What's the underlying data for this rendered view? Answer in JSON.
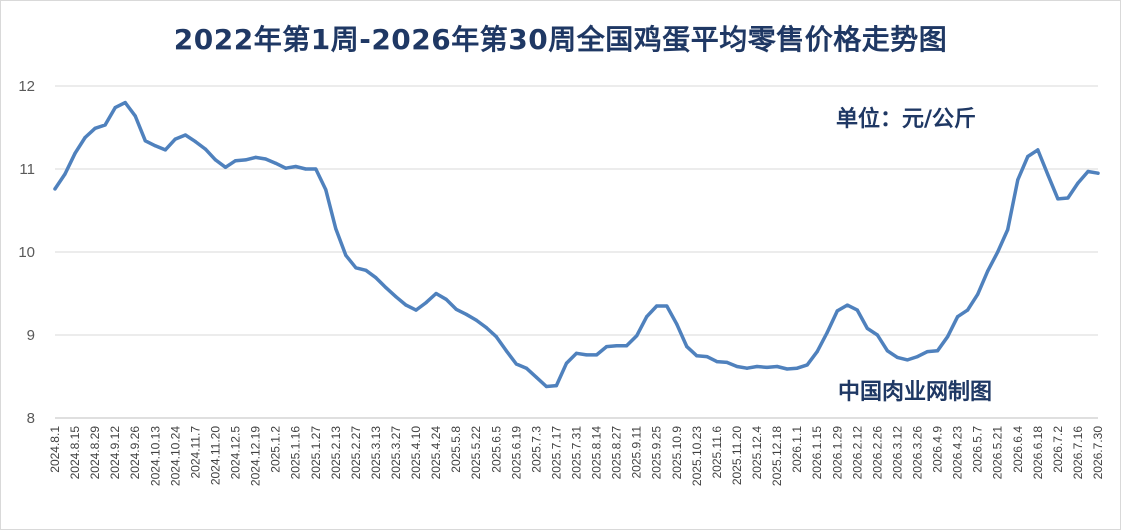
{
  "chart_data": {
    "type": "line",
    "title": "2022年第1周-2026年第30周全国鸡蛋平均零售价格走势图",
    "unit_label": "单位：元/公斤",
    "source_label": "中国肉业网制图",
    "ylim": [
      8,
      12
    ],
    "yticks": [
      8,
      9,
      10,
      11,
      12
    ],
    "grid": true,
    "legend": "none",
    "line_color": "#4f81bd",
    "x_tick_labels": [
      "2024.8.1",
      "2024.8.15",
      "2024.8.29",
      "2024.9.12",
      "2024.9.26",
      "2024.10.13",
      "2024.10.24",
      "2024.11.7",
      "2024.11.20",
      "2024.12.5",
      "2024.12.19",
      "2025.1.2",
      "2025.1.16",
      "2025.1.27",
      "2025.2.13",
      "2025.2.27",
      "2025.3.13",
      "2025.3.27",
      "2025.4.10",
      "2025.4.24",
      "2025.5.8",
      "2025.5.22",
      "2025.6.5",
      "2025.6.19",
      "2025.7.3",
      "2025.7.17",
      "2025.7.31",
      "2025.8.14",
      "2025.8.27",
      "2025.9.11",
      "2025.9.25",
      "2025.10.9",
      "2025.10.23",
      "2025.11.6",
      "2025.11.20",
      "2025.12.4",
      "2025.12.18",
      "2026.1.1",
      "2026.1.15",
      "2026.1.29",
      "2026.2.12",
      "2026.2.26",
      "2026.3.12",
      "2026.3.26",
      "2026.4.9",
      "2026.4.23",
      "2026.5.7",
      "2026.5.21",
      "2026.6.4",
      "2026.6.18",
      "2026.7.2",
      "2026.7.16",
      "2026.7.30"
    ],
    "values": [
      10.76,
      10.94,
      11.19,
      11.38,
      11.49,
      11.53,
      11.74,
      11.8,
      11.64,
      11.34,
      11.28,
      11.23,
      11.36,
      11.41,
      11.33,
      11.24,
      11.11,
      11.02,
      11.1,
      11.11,
      11.14,
      11.12,
      11.07,
      11.01,
      11.03,
      11.0,
      11.0,
      10.75,
      10.28,
      9.96,
      9.81,
      9.78,
      9.69,
      9.57,
      9.46,
      9.36,
      9.3,
      9.39,
      9.5,
      9.43,
      9.31,
      9.25,
      9.18,
      9.09,
      8.98,
      8.81,
      8.65,
      8.6,
      8.49,
      8.38,
      8.39,
      8.66,
      8.78,
      8.76,
      8.76,
      8.86,
      8.87,
      8.87,
      8.99,
      9.22,
      9.35,
      9.35,
      9.13,
      8.86,
      8.75,
      8.74,
      8.68,
      8.67,
      8.62,
      8.6,
      8.62,
      8.61,
      8.62,
      8.59,
      8.6,
      8.64,
      8.8,
      9.03,
      9.29,
      9.36,
      9.3,
      9.08,
      9.0,
      8.81,
      8.73,
      8.7,
      8.74,
      8.8,
      8.81,
      8.98,
      9.22,
      9.3,
      9.49,
      9.77,
      10.0,
      10.27,
      10.87,
      11.15,
      11.23,
      10.93,
      10.64,
      10.65,
      10.83,
      10.97,
      10.95
    ]
  }
}
